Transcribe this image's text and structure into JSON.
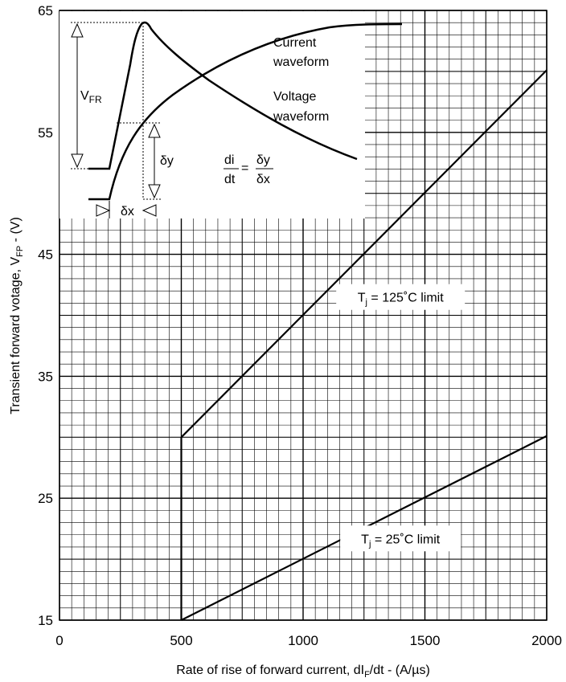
{
  "chart_data": {
    "type": "line",
    "xlabel": "Rate of rise of forward current, dI",
    "xlabel_sub": "F",
    "xlabel_tail": "/dt - (A/µs)",
    "ylabel": "Transient forward votage, V",
    "ylabel_sub": "FP",
    "ylabel_tail": " - (V)",
    "xlim": [
      0,
      2000
    ],
    "ylim": [
      15,
      65
    ],
    "x_ticks": [
      0,
      500,
      1000,
      1500,
      2000
    ],
    "y_ticks": [
      15,
      25,
      35,
      45,
      55,
      65
    ],
    "grid": true,
    "series": [
      {
        "name": "T_j = 125°C limit",
        "x": [
          500,
          2000
        ],
        "y": [
          30,
          60.1
        ]
      },
      {
        "name": "T_j = 25°C limit",
        "x": [
          500,
          2000
        ],
        "y": [
          15,
          30.1
        ]
      }
    ],
    "annotations": {
      "tj125": {
        "prefix": "T",
        "sub": "j",
        "suffix": " = 125˚C limit",
        "x": 1400,
        "y": 41.5
      },
      "tj25": {
        "prefix": "T",
        "sub": "j",
        "suffix": " = 25˚C limit",
        "x": 1400,
        "y": 21.7
      }
    },
    "inset": {
      "current_label_1": "Current",
      "current_label_2": "waveform",
      "voltage_label_1": "Voltage",
      "voltage_label_2": "waveform",
      "vfr_main": "V",
      "vfr_sub": "FR",
      "dy": "δy",
      "dx": "δx",
      "di": "di",
      "dt": "dt",
      "eq": "="
    }
  }
}
